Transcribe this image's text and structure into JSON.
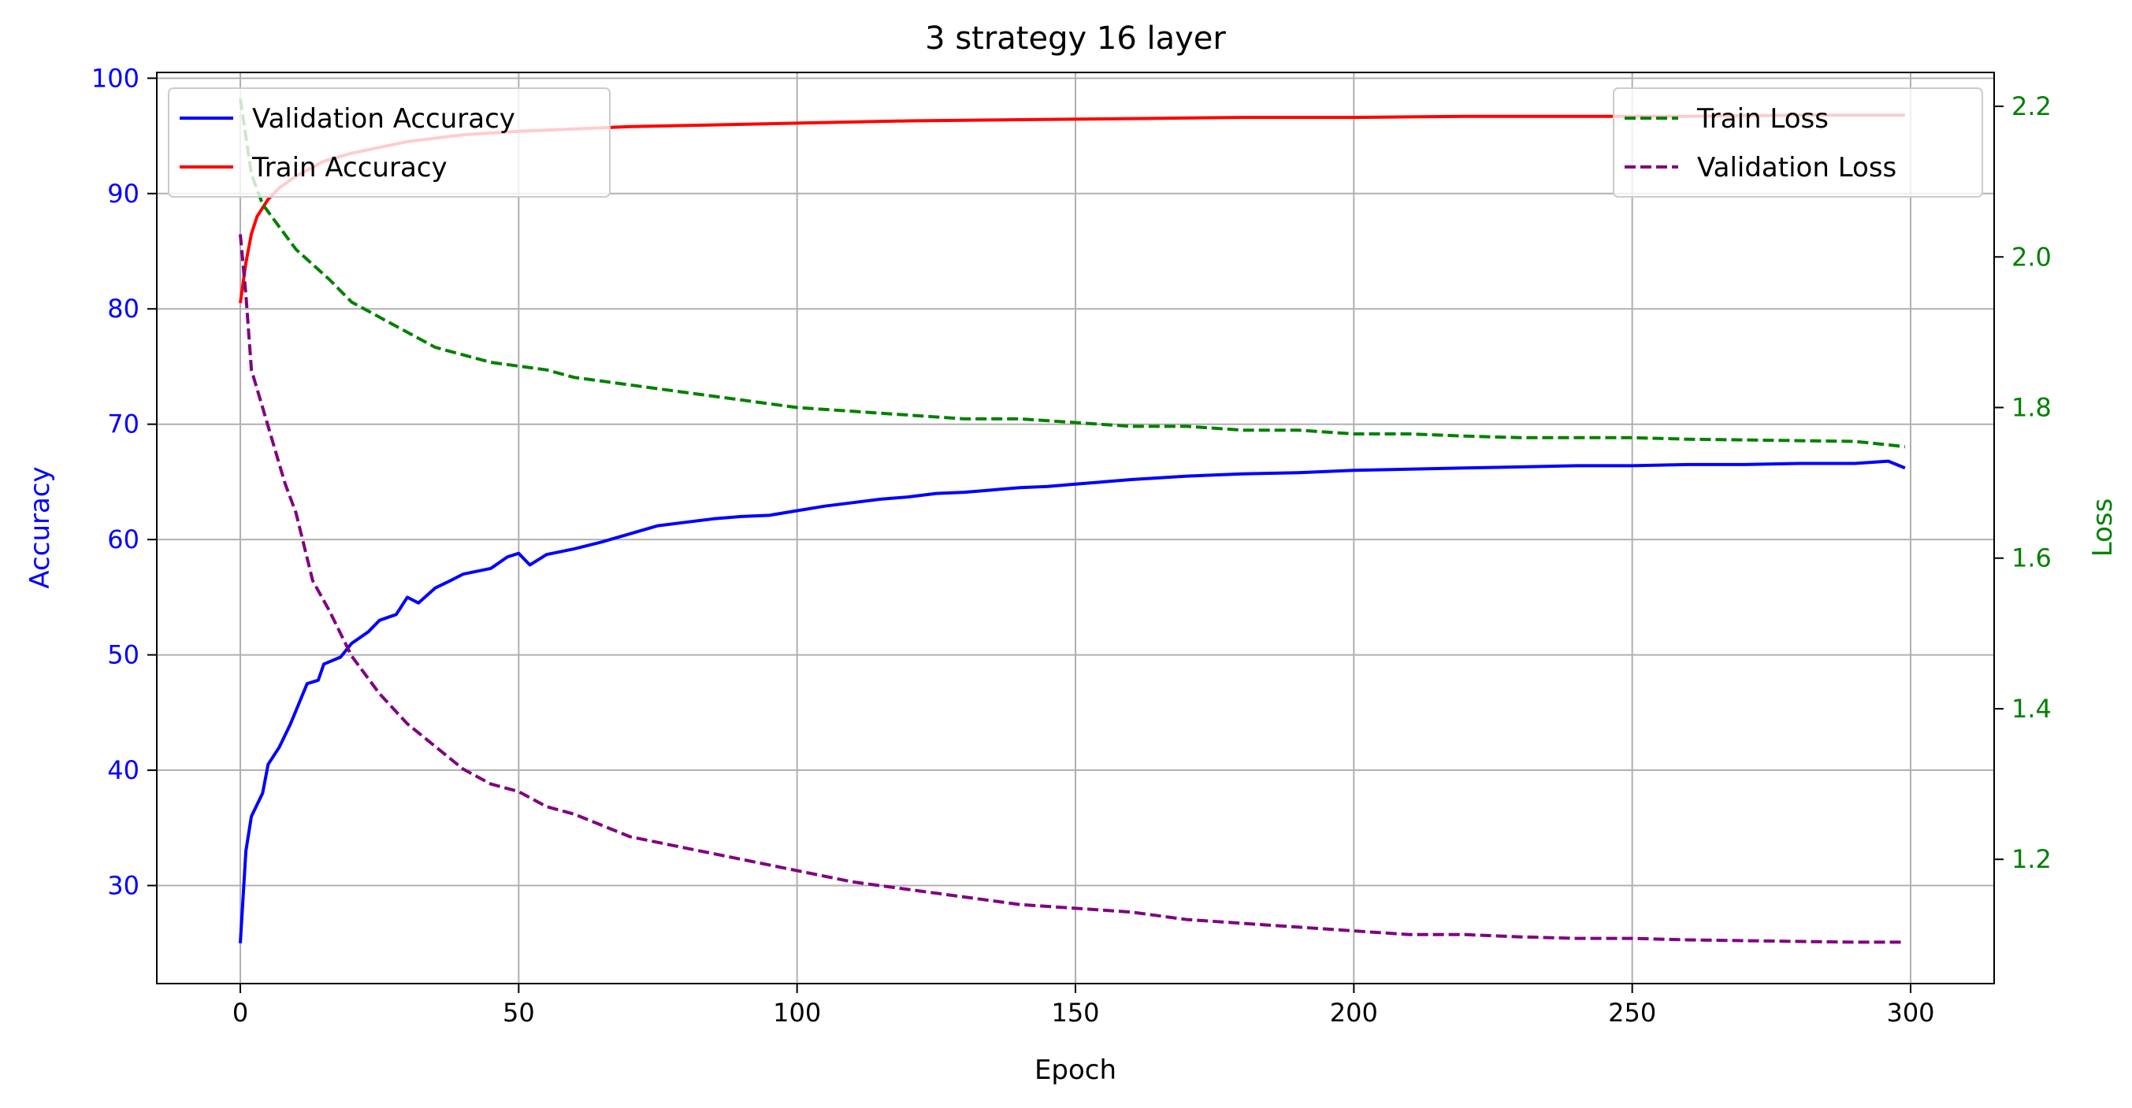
{
  "chart_data": {
    "type": "line",
    "title": "3 strategy 16 layer",
    "xlabel": "Epoch",
    "ylabel_left": "Accuracy",
    "ylabel_right": "Loss",
    "xlim": [
      -15,
      315
    ],
    "ylim_left": [
      21.5,
      100.5
    ],
    "ylim_right": [
      1.035,
      2.245
    ],
    "x_ticks": [
      0,
      50,
      100,
      150,
      200,
      250,
      300
    ],
    "y_left_ticks": [
      30,
      40,
      50,
      60,
      70,
      80,
      90,
      100
    ],
    "y_right_ticks": [
      1.2,
      1.4,
      1.6,
      1.8,
      2.0,
      2.2
    ],
    "y_right_tick_labels": [
      "1.2",
      "1.4",
      "1.6",
      "1.8",
      "2.0",
      "2.2"
    ],
    "grid": true,
    "legend_left_placement": "upper-left",
    "legend_right_placement": "upper-right",
    "colors": {
      "validation_accuracy": "#0000ff",
      "train_accuracy": "#ff0000",
      "train_loss": "#008000",
      "validation_loss": "#800080",
      "left_axis": "#0000ff",
      "right_axis": "#008000"
    },
    "series": [
      {
        "name": "Validation Accuracy",
        "axis": "left",
        "style": "solid",
        "points": [
          [
            0,
            25
          ],
          [
            1,
            33
          ],
          [
            2,
            36
          ],
          [
            4,
            38
          ],
          [
            5,
            40.5
          ],
          [
            7,
            42
          ],
          [
            9,
            44
          ],
          [
            12,
            47.5
          ],
          [
            14,
            47.8
          ],
          [
            15,
            49.2
          ],
          [
            18,
            49.8
          ],
          [
            20,
            51
          ],
          [
            23,
            52
          ],
          [
            25,
            53
          ],
          [
            28,
            53.5
          ],
          [
            30,
            55
          ],
          [
            32,
            54.5
          ],
          [
            35,
            55.8
          ],
          [
            38,
            56.5
          ],
          [
            40,
            57
          ],
          [
            45,
            57.5
          ],
          [
            48,
            58.5
          ],
          [
            50,
            58.8
          ],
          [
            52,
            57.8
          ],
          [
            55,
            58.7
          ],
          [
            60,
            59.2
          ],
          [
            65,
            59.8
          ],
          [
            70,
            60.5
          ],
          [
            75,
            61.2
          ],
          [
            80,
            61.5
          ],
          [
            85,
            61.8
          ],
          [
            90,
            62
          ],
          [
            95,
            62.1
          ],
          [
            100,
            62.5
          ],
          [
            105,
            62.9
          ],
          [
            110,
            63.2
          ],
          [
            115,
            63.5
          ],
          [
            120,
            63.7
          ],
          [
            125,
            64
          ],
          [
            130,
            64.1
          ],
          [
            135,
            64.3
          ],
          [
            140,
            64.5
          ],
          [
            145,
            64.6
          ],
          [
            150,
            64.8
          ],
          [
            160,
            65.2
          ],
          [
            170,
            65.5
          ],
          [
            180,
            65.7
          ],
          [
            190,
            65.8
          ],
          [
            200,
            66
          ],
          [
            210,
            66.1
          ],
          [
            220,
            66.2
          ],
          [
            230,
            66.3
          ],
          [
            240,
            66.4
          ],
          [
            250,
            66.4
          ],
          [
            260,
            66.5
          ],
          [
            270,
            66.5
          ],
          [
            280,
            66.6
          ],
          [
            290,
            66.6
          ],
          [
            296,
            66.8
          ],
          [
            299,
            66.2
          ]
        ]
      },
      {
        "name": "Train Accuracy",
        "axis": "left",
        "style": "solid",
        "points": [
          [
            0,
            80.5
          ],
          [
            1,
            84
          ],
          [
            2,
            86.5
          ],
          [
            3,
            88
          ],
          [
            5,
            89.5
          ],
          [
            7,
            90.5
          ],
          [
            10,
            91.5
          ],
          [
            15,
            92.8
          ],
          [
            20,
            93.5
          ],
          [
            25,
            94
          ],
          [
            30,
            94.5
          ],
          [
            35,
            94.8
          ],
          [
            40,
            95.1
          ],
          [
            50,
            95.4
          ],
          [
            60,
            95.6
          ],
          [
            70,
            95.8
          ],
          [
            80,
            95.9
          ],
          [
            90,
            96
          ],
          [
            100,
            96.1
          ],
          [
            120,
            96.3
          ],
          [
            140,
            96.4
          ],
          [
            160,
            96.5
          ],
          [
            180,
            96.6
          ],
          [
            200,
            96.6
          ],
          [
            220,
            96.7
          ],
          [
            240,
            96.7
          ],
          [
            260,
            96.7
          ],
          [
            280,
            96.8
          ],
          [
            299,
            96.8
          ]
        ]
      },
      {
        "name": "Train Loss",
        "axis": "right",
        "style": "dashed",
        "points": [
          [
            0,
            2.21
          ],
          [
            1,
            2.16
          ],
          [
            2,
            2.11
          ],
          [
            4,
            2.07
          ],
          [
            6,
            2.05
          ],
          [
            8,
            2.03
          ],
          [
            10,
            2.01
          ],
          [
            13,
            1.99
          ],
          [
            16,
            1.97
          ],
          [
            20,
            1.94
          ],
          [
            25,
            1.92
          ],
          [
            30,
            1.9
          ],
          [
            35,
            1.88
          ],
          [
            40,
            1.87
          ],
          [
            45,
            1.86
          ],
          [
            50,
            1.855
          ],
          [
            55,
            1.85
          ],
          [
            60,
            1.84
          ],
          [
            65,
            1.835
          ],
          [
            70,
            1.83
          ],
          [
            80,
            1.82
          ],
          [
            90,
            1.81
          ],
          [
            100,
            1.8
          ],
          [
            110,
            1.795
          ],
          [
            120,
            1.79
          ],
          [
            130,
            1.785
          ],
          [
            140,
            1.785
          ],
          [
            150,
            1.78
          ],
          [
            160,
            1.775
          ],
          [
            170,
            1.775
          ],
          [
            180,
            1.77
          ],
          [
            190,
            1.77
          ],
          [
            200,
            1.765
          ],
          [
            210,
            1.765
          ],
          [
            220,
            1.762
          ],
          [
            230,
            1.76
          ],
          [
            240,
            1.76
          ],
          [
            250,
            1.76
          ],
          [
            260,
            1.758
          ],
          [
            270,
            1.757
          ],
          [
            280,
            1.756
          ],
          [
            290,
            1.755
          ],
          [
            299,
            1.748
          ]
        ]
      },
      {
        "name": "Validation Loss",
        "axis": "right",
        "style": "dashed",
        "points": [
          [
            0,
            2.03
          ],
          [
            1,
            1.95
          ],
          [
            2,
            1.85
          ],
          [
            4,
            1.8
          ],
          [
            6,
            1.75
          ],
          [
            8,
            1.7
          ],
          [
            10,
            1.66
          ],
          [
            13,
            1.57
          ],
          [
            16,
            1.53
          ],
          [
            20,
            1.47
          ],
          [
            25,
            1.42
          ],
          [
            30,
            1.38
          ],
          [
            35,
            1.35
          ],
          [
            40,
            1.32
          ],
          [
            45,
            1.3
          ],
          [
            50,
            1.29
          ],
          [
            55,
            1.27
          ],
          [
            60,
            1.26
          ],
          [
            65,
            1.245
          ],
          [
            70,
            1.23
          ],
          [
            80,
            1.215
          ],
          [
            90,
            1.2
          ],
          [
            100,
            1.185
          ],
          [
            110,
            1.17
          ],
          [
            120,
            1.16
          ],
          [
            130,
            1.15
          ],
          [
            140,
            1.14
          ],
          [
            150,
            1.135
          ],
          [
            160,
            1.13
          ],
          [
            170,
            1.12
          ],
          [
            180,
            1.115
          ],
          [
            190,
            1.11
          ],
          [
            200,
            1.105
          ],
          [
            210,
            1.1
          ],
          [
            220,
            1.1
          ],
          [
            230,
            1.097
          ],
          [
            240,
            1.095
          ],
          [
            250,
            1.095
          ],
          [
            260,
            1.093
          ],
          [
            270,
            1.092
          ],
          [
            280,
            1.091
          ],
          [
            290,
            1.09
          ],
          [
            299,
            1.09
          ]
        ]
      }
    ]
  }
}
